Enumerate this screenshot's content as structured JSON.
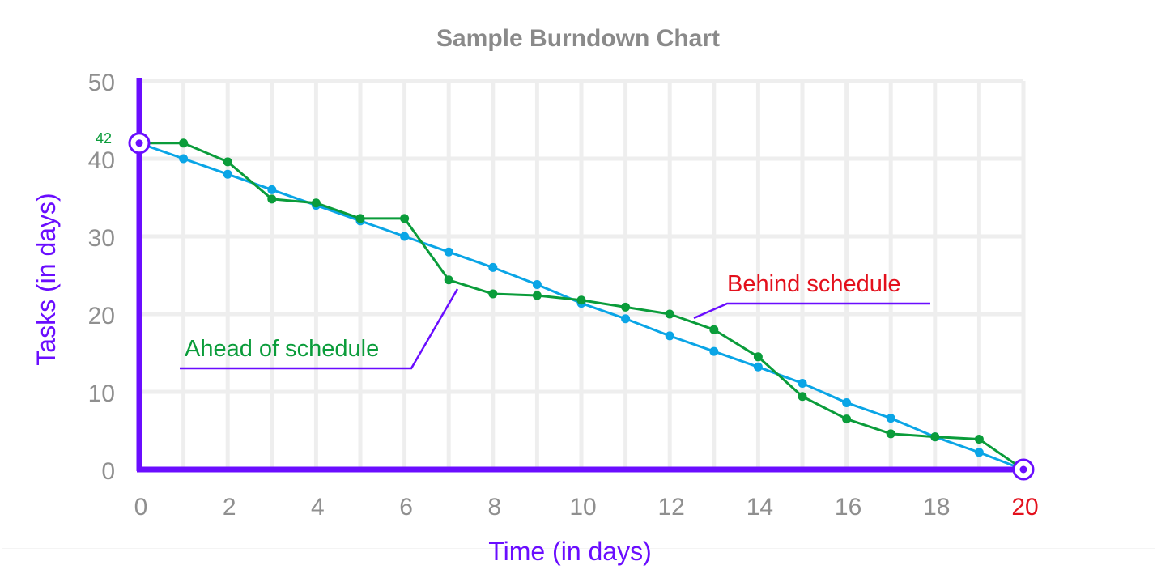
{
  "chart_data": {
    "type": "line",
    "title": "Sample Burndown Chart",
    "xlabel": "Time (in days)",
    "ylabel": "Tasks (in days)",
    "xlim": [
      0,
      20
    ],
    "ylim": [
      0,
      50
    ],
    "x_ticks": [
      0,
      2,
      4,
      6,
      8,
      10,
      12,
      14,
      16,
      18,
      20
    ],
    "y_ticks": [
      0,
      10,
      20,
      30,
      40,
      50
    ],
    "highlighted_x_tick": 20,
    "grid": true,
    "start_value_label": "42",
    "series": [
      {
        "color": "#0aa5e6",
        "x": [
          0,
          1,
          2,
          3,
          4,
          5,
          6,
          7,
          8,
          9,
          10,
          11,
          12,
          13,
          14,
          15,
          16,
          17,
          18,
          19,
          20
        ],
        "values": [
          42,
          40.0,
          38.0,
          36.0,
          34.0,
          32.0,
          30.0,
          28.0,
          26.0,
          23.8,
          21.4,
          19.4,
          17.2,
          15.2,
          13.2,
          11.1,
          8.6,
          6.6,
          4.2,
          2.2,
          0
        ]
      },
      {
        "color": "#0a9c3a",
        "x": [
          0,
          1,
          2,
          3,
          4,
          5,
          6,
          7,
          8,
          9,
          10,
          11,
          12,
          13,
          14,
          15,
          16,
          17,
          18,
          19,
          20
        ],
        "values": [
          42,
          42.0,
          39.6,
          34.8,
          34.3,
          32.3,
          32.3,
          24.4,
          22.6,
          22.4,
          21.8,
          20.9,
          20.0,
          18.0,
          14.5,
          9.4,
          6.5,
          4.6,
          4.2,
          3.9,
          0
        ]
      }
    ],
    "annotations": [
      {
        "text": "Ahead of schedule",
        "color": "#0a9c3a",
        "pointer_color": "#6a0dff"
      },
      {
        "text": "Behind schedule",
        "color": "#e3101c",
        "pointer_color": "#6a0dff"
      }
    ],
    "axis_color": "#6a0dff",
    "grid_color": "#eeeeee"
  }
}
